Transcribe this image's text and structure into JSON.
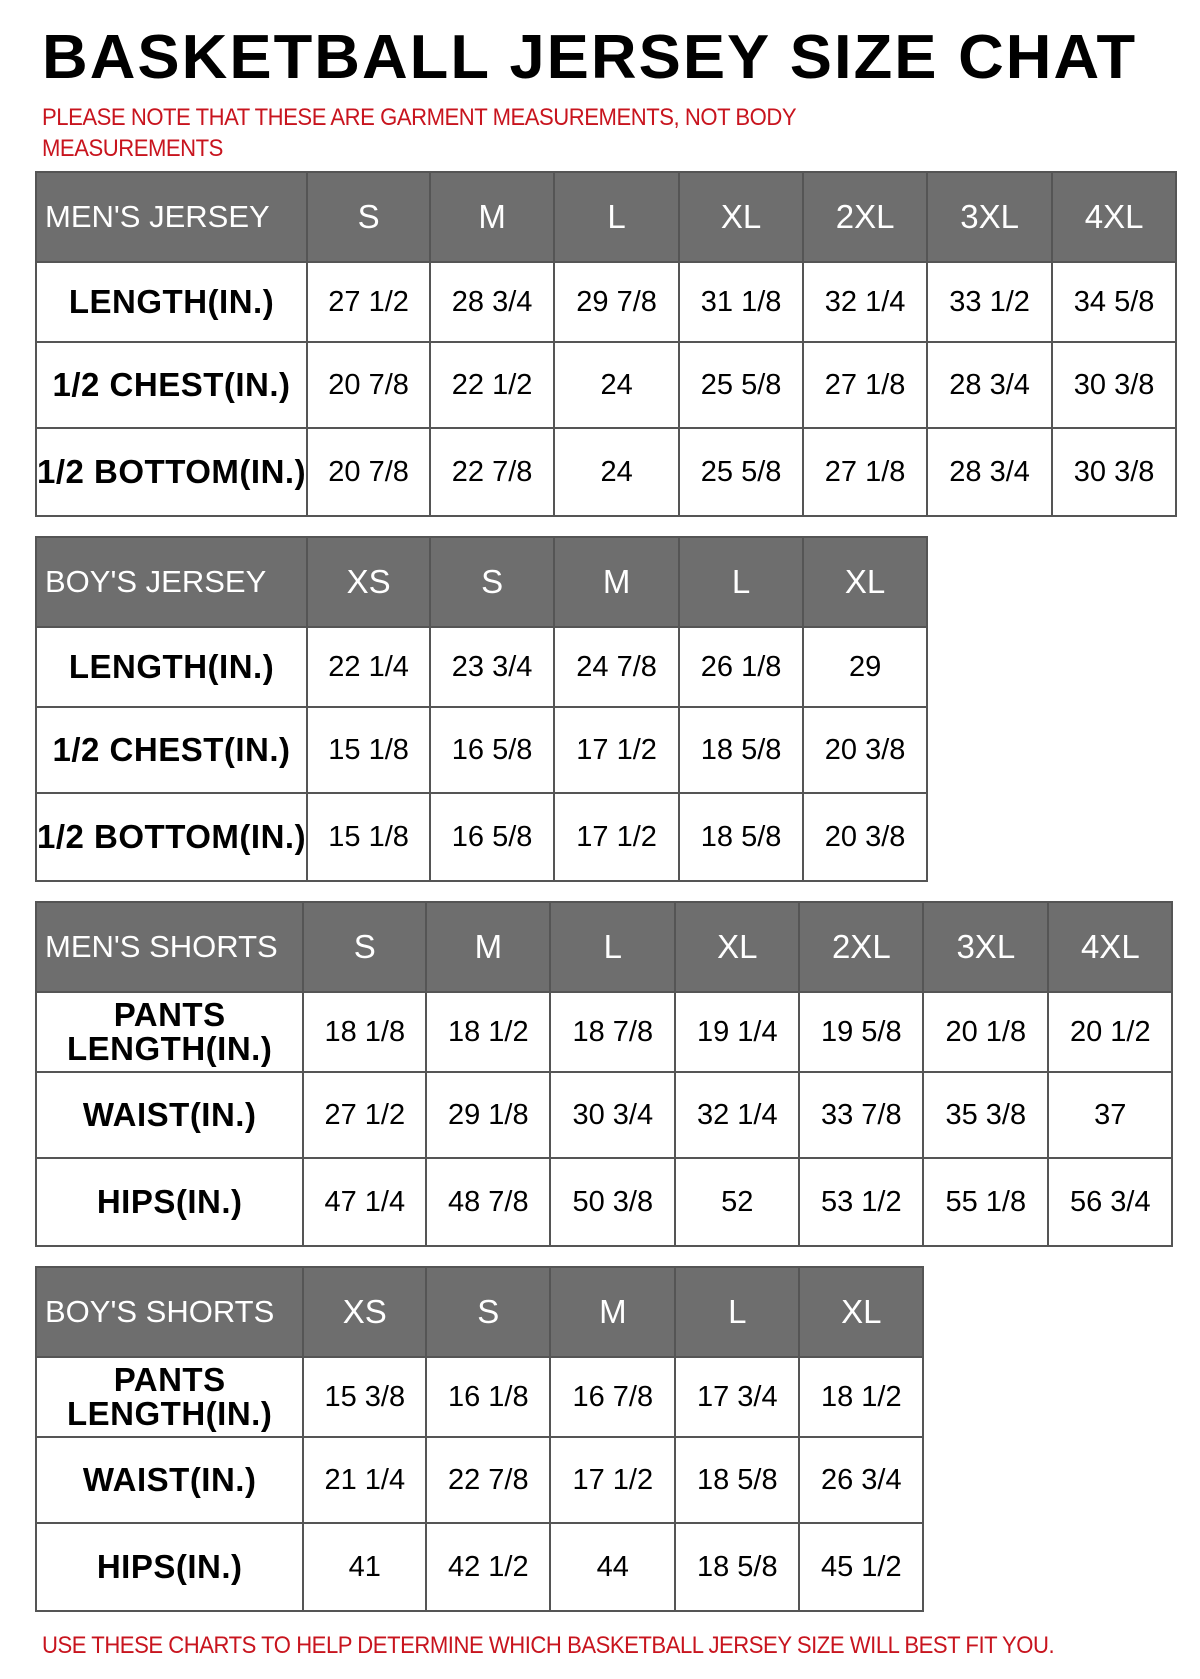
{
  "title": "BASKETBALL JERSEY SIZE CHAT",
  "note": "PLEASE NOTE THAT THESE ARE GARMENT MEASUREMENTS, NOT BODY MEASUREMENTS",
  "footer": "USE THESE CHARTS TO HELP DETERMINE WHICH BASKETBALL JERSEY SIZE WILL BEST FIT YOU.",
  "colors": {
    "header_bg": "#6e6e6e",
    "note_red": "#c8141e"
  },
  "tables": [
    {
      "name": "MEN'S JERSEY",
      "sizes": [
        "S",
        "M",
        "L",
        "XL",
        "2XL",
        "3XL",
        "4XL"
      ],
      "rows": [
        {
          "label": "LENGTH(IN.)",
          "values": [
            "27 1/2",
            "28 3/4",
            "29 7/8",
            "31 1/8",
            "32 1/4",
            "33 1/2",
            "34 5/8"
          ]
        },
        {
          "label": "1/2 CHEST(IN.)",
          "values": [
            "20 7/8",
            "22 1/2",
            "24",
            "25 5/8",
            "27 1/8",
            "28 3/4",
            "30 3/8"
          ]
        },
        {
          "label": "1/2 BOTTOM(IN.)",
          "values": [
            "20 7/8",
            "22 7/8",
            "24",
            "25 5/8",
            "27 1/8",
            "28 3/4",
            "30 3/8"
          ]
        }
      ]
    },
    {
      "name": "BOY'S JERSEY",
      "sizes": [
        "XS",
        "S",
        "M",
        "L",
        "XL"
      ],
      "rows": [
        {
          "label": "LENGTH(IN.)",
          "values": [
            "22 1/4",
            "23 3/4",
            "24 7/8",
            "26 1/8",
            "29"
          ]
        },
        {
          "label": "1/2 CHEST(IN.)",
          "values": [
            "15 1/8",
            "16 5/8",
            "17 1/2",
            "18 5/8",
            "20 3/8"
          ]
        },
        {
          "label": "1/2 BOTTOM(IN.)",
          "values": [
            "15 1/8",
            "16 5/8",
            "17 1/2",
            "18 5/8",
            "20 3/8"
          ]
        }
      ]
    },
    {
      "name": "MEN'S SHORTS",
      "sizes": [
        "S",
        "M",
        "L",
        "XL",
        "2XL",
        "3XL",
        "4XL"
      ],
      "rows": [
        {
          "label": "PANTS LENGTH(IN.)",
          "values": [
            "18 1/8",
            "18 1/2",
            "18 7/8",
            "19 1/4",
            "19 5/8",
            "20 1/8",
            "20 1/2"
          ]
        },
        {
          "label": "WAIST(IN.)",
          "values": [
            "27 1/2",
            "29 1/8",
            "30 3/4",
            "32 1/4",
            "33 7/8",
            "35 3/8",
            "37"
          ]
        },
        {
          "label": "HIPS(IN.)",
          "values": [
            "47 1/4",
            "48 7/8",
            "50 3/8",
            "52",
            "53 1/2",
            "55 1/8",
            "56 3/4"
          ]
        }
      ]
    },
    {
      "name": "BOY'S SHORTS",
      "sizes": [
        "XS",
        "S",
        "M",
        "L",
        "XL"
      ],
      "rows": [
        {
          "label": "PANTS LENGTH(IN.)",
          "values": [
            "15 3/8",
            "16 1/8",
            "16 7/8",
            "17 3/4",
            "18 1/2"
          ]
        },
        {
          "label": "WAIST(IN.)",
          "values": [
            "21 1/4",
            "22 7/8",
            "17 1/2",
            "18 5/8",
            "26 3/4"
          ]
        },
        {
          "label": "HIPS(IN.)",
          "values": [
            "41",
            "42 1/2",
            "44",
            "18 5/8",
            "45 1/2"
          ]
        }
      ]
    }
  ]
}
